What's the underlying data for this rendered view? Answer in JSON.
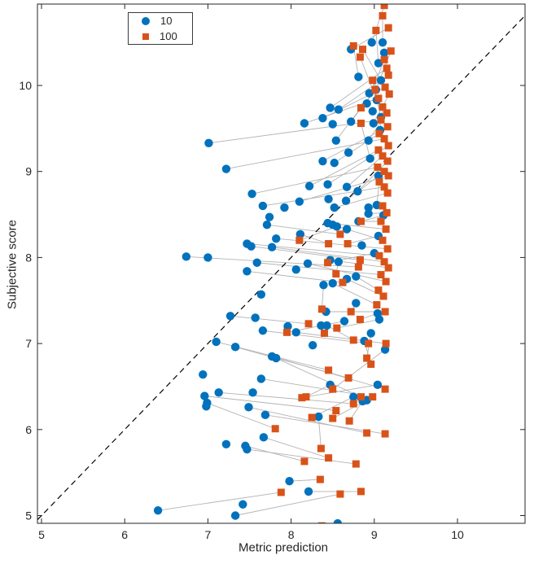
{
  "figure": {
    "background": "#ffffff",
    "axis_color": "#262626"
  },
  "chart_data": {
    "type": "scatter",
    "title": "",
    "xlabel": "Metric prediction",
    "ylabel": "Subjective score",
    "xlim": [
      4.95,
      10.81
    ],
    "ylim": [
      4.91,
      10.95
    ],
    "xticks": [
      5,
      6,
      7,
      8,
      9,
      10
    ],
    "yticks": [
      5,
      6,
      7,
      8,
      9,
      10
    ],
    "grid": false,
    "legend": {
      "position": "top-left",
      "items": [
        {
          "label": "10",
          "marker": "circle",
          "color": "#0072BD"
        },
        {
          "label": "100",
          "marker": "square",
          "color": "#D95319"
        }
      ]
    },
    "identity_line": {
      "style": "dashed",
      "color": "#000000",
      "from": [
        4.95,
        4.95
      ],
      "to": [
        10.81,
        10.81
      ]
    },
    "pair_line_color": "#b3b3b3",
    "series": [
      {
        "name": "10",
        "marker": "circle",
        "color": "#0072BD",
        "points": [
          [
            8.97,
            10.5
          ],
          [
            9.1,
            10.5
          ],
          [
            8.72,
            10.42
          ],
          [
            9.12,
            10.38
          ],
          [
            9.05,
            10.26
          ],
          [
            8.81,
            10.1
          ],
          [
            9.08,
            10.06
          ],
          [
            8.94,
            9.91
          ],
          [
            9.02,
            9.95
          ],
          [
            8.47,
            9.74
          ],
          [
            8.57,
            9.72
          ],
          [
            8.38,
            9.62
          ],
          [
            8.5,
            9.55
          ],
          [
            8.72,
            9.58
          ],
          [
            8.54,
            9.36
          ],
          [
            8.69,
            9.22
          ],
          [
            8.38,
            9.12
          ],
          [
            8.52,
            9.1
          ],
          [
            8.44,
            8.85
          ],
          [
            8.67,
            8.82
          ],
          [
            8.8,
            8.77
          ],
          [
            8.93,
            9.36
          ],
          [
            8.99,
            9.56
          ],
          [
            9.08,
            9.63
          ],
          [
            8.91,
            9.79
          ],
          [
            9.03,
            9.83
          ],
          [
            9.07,
            9.48
          ],
          [
            8.95,
            9.15
          ],
          [
            9.05,
            8.95
          ],
          [
            8.98,
            9.7
          ],
          [
            8.16,
            9.56
          ],
          [
            7.01,
            9.33
          ],
          [
            7.22,
            9.03
          ],
          [
            7.53,
            8.74
          ],
          [
            7.66,
            8.6
          ],
          [
            7.92,
            8.58
          ],
          [
            8.1,
            8.65
          ],
          [
            8.22,
            8.83
          ],
          [
            7.74,
            8.47
          ],
          [
            7.71,
            8.38
          ],
          [
            7.82,
            8.22
          ],
          [
            8.11,
            8.27
          ],
          [
            7.47,
            8.16
          ],
          [
            7.52,
            8.13
          ],
          [
            7.77,
            8.12
          ],
          [
            8.45,
            8.68
          ],
          [
            8.66,
            8.66
          ],
          [
            8.52,
            8.58
          ],
          [
            8.93,
            8.58
          ],
          [
            9.03,
            8.61
          ],
          [
            8.44,
            8.4
          ],
          [
            8.5,
            8.38
          ],
          [
            8.55,
            8.36
          ],
          [
            8.67,
            8.33
          ],
          [
            8.93,
            8.51
          ],
          [
            9.11,
            8.49
          ],
          [
            8.85,
            8.14
          ],
          [
            8.47,
            7.97
          ],
          [
            8.57,
            7.95
          ],
          [
            8.78,
            7.78
          ],
          [
            8.67,
            7.75
          ],
          [
            8.5,
            7.7
          ],
          [
            8.39,
            7.68
          ],
          [
            8.81,
            8.42
          ],
          [
            9.05,
            8.25
          ],
          [
            9.0,
            8.05
          ],
          [
            6.74,
            8.01
          ],
          [
            7.0,
            8.0
          ],
          [
            7.59,
            7.94
          ],
          [
            7.47,
            7.84
          ],
          [
            8.06,
            7.86
          ],
          [
            8.2,
            7.93
          ],
          [
            7.64,
            7.57
          ],
          [
            7.27,
            7.32
          ],
          [
            7.57,
            7.3
          ],
          [
            7.96,
            7.2
          ],
          [
            8.06,
            7.13
          ],
          [
            7.66,
            7.15
          ],
          [
            7.1,
            7.02
          ],
          [
            7.33,
            6.96
          ],
          [
            7.77,
            6.85
          ],
          [
            7.82,
            6.83
          ],
          [
            8.26,
            6.98
          ],
          [
            6.94,
            6.64
          ],
          [
            7.64,
            6.59
          ],
          [
            8.78,
            7.47
          ],
          [
            8.42,
            7.37
          ],
          [
            8.64,
            7.26
          ],
          [
            8.36,
            7.21
          ],
          [
            8.43,
            7.21
          ],
          [
            8.88,
            7.03
          ],
          [
            9.04,
            7.35
          ],
          [
            9.06,
            7.28
          ],
          [
            9.13,
            6.93
          ],
          [
            8.47,
            6.52
          ],
          [
            9.04,
            6.52
          ],
          [
            8.75,
            6.38
          ],
          [
            8.91,
            6.34
          ],
          [
            8.86,
            6.33
          ],
          [
            8.96,
            7.12
          ],
          [
            6.96,
            6.39
          ],
          [
            6.99,
            6.31
          ],
          [
            6.98,
            6.27
          ],
          [
            7.13,
            6.43
          ],
          [
            7.54,
            6.43
          ],
          [
            7.49,
            6.26
          ],
          [
            7.69,
            6.17
          ],
          [
            7.67,
            5.91
          ],
          [
            7.22,
            5.83
          ],
          [
            7.45,
            5.81
          ],
          [
            7.47,
            5.77
          ],
          [
            7.98,
            5.4
          ],
          [
            8.21,
            5.28
          ],
          [
            7.42,
            5.13
          ],
          [
            6.4,
            5.06
          ],
          [
            7.33,
            5.0
          ],
          [
            8.56,
            4.91
          ],
          [
            8.33,
            6.15
          ]
        ]
      },
      {
        "name": "100",
        "marker": "square",
        "color": "#D95319",
        "points": [
          [
            9.12,
            10.93
          ],
          [
            9.1,
            10.81
          ],
          [
            9.02,
            10.64
          ],
          [
            9.17,
            10.67
          ],
          [
            8.86,
            10.42
          ],
          [
            8.83,
            10.33
          ],
          [
            9.12,
            10.3
          ],
          [
            9.15,
            10.2
          ],
          [
            9.17,
            10.12
          ],
          [
            8.98,
            10.06
          ],
          [
            9.01,
            9.95
          ],
          [
            9.13,
            9.98
          ],
          [
            9.18,
            9.9
          ],
          [
            8.75,
            10.46
          ],
          [
            9.2,
            10.4
          ],
          [
            9.05,
            9.85
          ],
          [
            9.1,
            9.75
          ],
          [
            8.84,
            9.74
          ],
          [
            9.15,
            9.68
          ],
          [
            9.08,
            9.6
          ],
          [
            8.84,
            9.56
          ],
          [
            9.16,
            9.52
          ],
          [
            9.06,
            9.44
          ],
          [
            9.12,
            9.38
          ],
          [
            9.17,
            9.3
          ],
          [
            9.05,
            9.25
          ],
          [
            9.1,
            9.18
          ],
          [
            9.16,
            9.12
          ],
          [
            9.04,
            9.05
          ],
          [
            9.12,
            9.0
          ],
          [
            9.17,
            8.95
          ],
          [
            9.06,
            8.88
          ],
          [
            9.12,
            8.82
          ],
          [
            9.16,
            8.75
          ],
          [
            8.84,
            8.42
          ],
          [
            8.59,
            8.27
          ],
          [
            8.45,
            8.16
          ],
          [
            8.68,
            8.16
          ],
          [
            8.44,
            7.94
          ],
          [
            8.54,
            7.81
          ],
          [
            8.62,
            7.71
          ],
          [
            8.83,
            7.97
          ],
          [
            8.81,
            7.89
          ],
          [
            9.1,
            8.6
          ],
          [
            9.15,
            8.52
          ],
          [
            9.08,
            8.42
          ],
          [
            9.14,
            8.33
          ],
          [
            9.1,
            8.2
          ],
          [
            9.16,
            8.1
          ],
          [
            9.06,
            8.02
          ],
          [
            9.12,
            7.95
          ],
          [
            9.17,
            7.88
          ],
          [
            9.08,
            7.8
          ],
          [
            9.14,
            7.72
          ],
          [
            9.05,
            7.62
          ],
          [
            9.11,
            7.55
          ],
          [
            7.95,
            7.13
          ],
          [
            8.21,
            7.23
          ],
          [
            8.1,
            8.2
          ],
          [
            8.37,
            7.4
          ],
          [
            8.72,
            7.37
          ],
          [
            9.03,
            7.45
          ],
          [
            9.13,
            7.37
          ],
          [
            8.83,
            7.28
          ],
          [
            8.55,
            7.18
          ],
          [
            8.4,
            7.12
          ],
          [
            8.75,
            7.04
          ],
          [
            8.93,
            7.0
          ],
          [
            9.14,
            7.0
          ],
          [
            8.91,
            6.83
          ],
          [
            8.96,
            6.76
          ],
          [
            8.45,
            6.69
          ],
          [
            8.69,
            6.6
          ],
          [
            8.5,
            6.47
          ],
          [
            9.13,
            6.47
          ],
          [
            8.84,
            6.38
          ],
          [
            8.98,
            6.38
          ],
          [
            8.75,
            6.3
          ],
          [
            8.54,
            6.22
          ],
          [
            8.13,
            6.37
          ],
          [
            8.18,
            6.38
          ],
          [
            8.25,
            6.14
          ],
          [
            7.81,
            6.01
          ],
          [
            8.16,
            5.63
          ],
          [
            7.88,
            5.27
          ],
          [
            8.5,
            6.13
          ],
          [
            8.7,
            6.1
          ],
          [
            8.91,
            5.96
          ],
          [
            9.13,
            5.95
          ],
          [
            8.36,
            5.78
          ],
          [
            8.45,
            5.67
          ],
          [
            8.78,
            5.6
          ],
          [
            8.35,
            5.42
          ],
          [
            8.59,
            5.25
          ],
          [
            8.84,
            5.28
          ],
          [
            8.37,
            4.88
          ]
        ]
      }
    ]
  }
}
